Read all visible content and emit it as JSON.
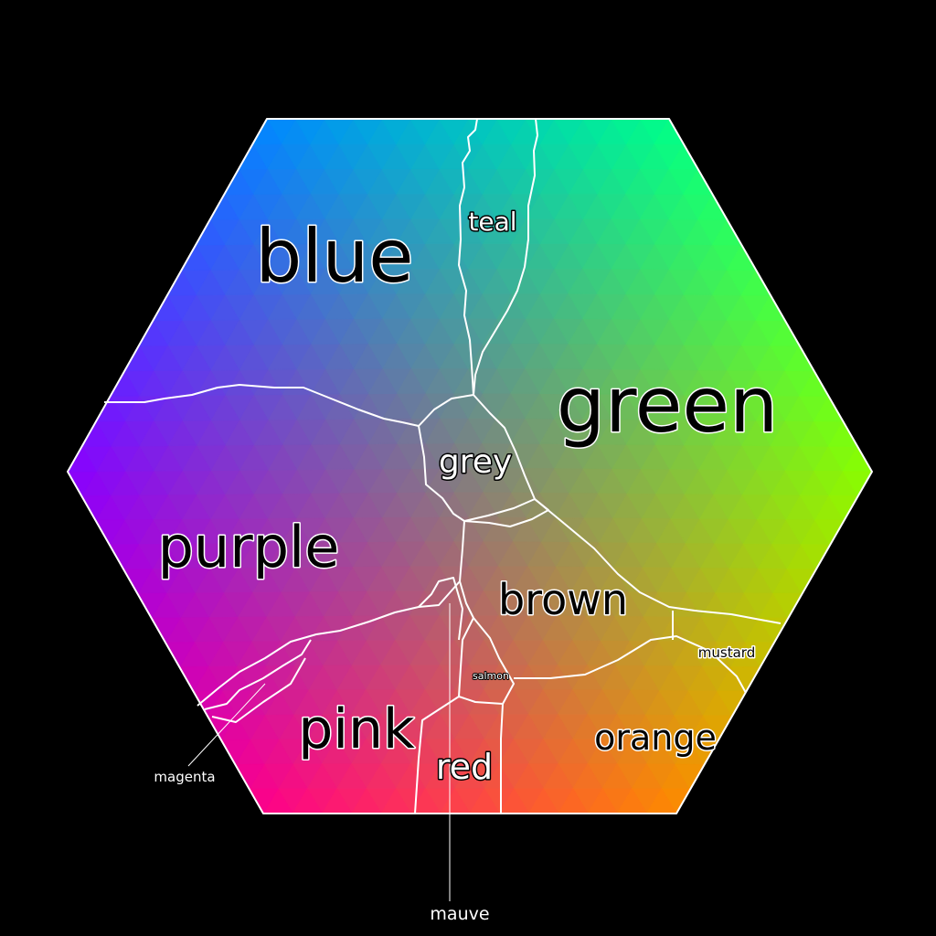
{
  "diagram": {
    "colors": {
      "background": "#000000",
      "top_left_vertex": "#0088FF",
      "top_right_vertex": "#00FF88",
      "right_vertex": "#88FF00",
      "bottom_right_vertex": "#FF8800",
      "bottom_left_vertex": "#FF0088",
      "left_vertex": "#8800FF",
      "center": "#808080",
      "region_border": "#FFFFFF"
    },
    "regions": [
      {
        "id": "blue",
        "label": "blue"
      },
      {
        "id": "teal",
        "label": "teal"
      },
      {
        "id": "green",
        "label": "green"
      },
      {
        "id": "grey",
        "label": "grey"
      },
      {
        "id": "purple",
        "label": "purple"
      },
      {
        "id": "brown",
        "label": "brown"
      },
      {
        "id": "mustard",
        "label": "mustard"
      },
      {
        "id": "salmon",
        "label": "salmon"
      },
      {
        "id": "pink",
        "label": "pink"
      },
      {
        "id": "orange",
        "label": "orange"
      },
      {
        "id": "red",
        "label": "red"
      },
      {
        "id": "magenta",
        "label": "magenta"
      },
      {
        "id": "mauve",
        "label": "mauve"
      }
    ]
  }
}
